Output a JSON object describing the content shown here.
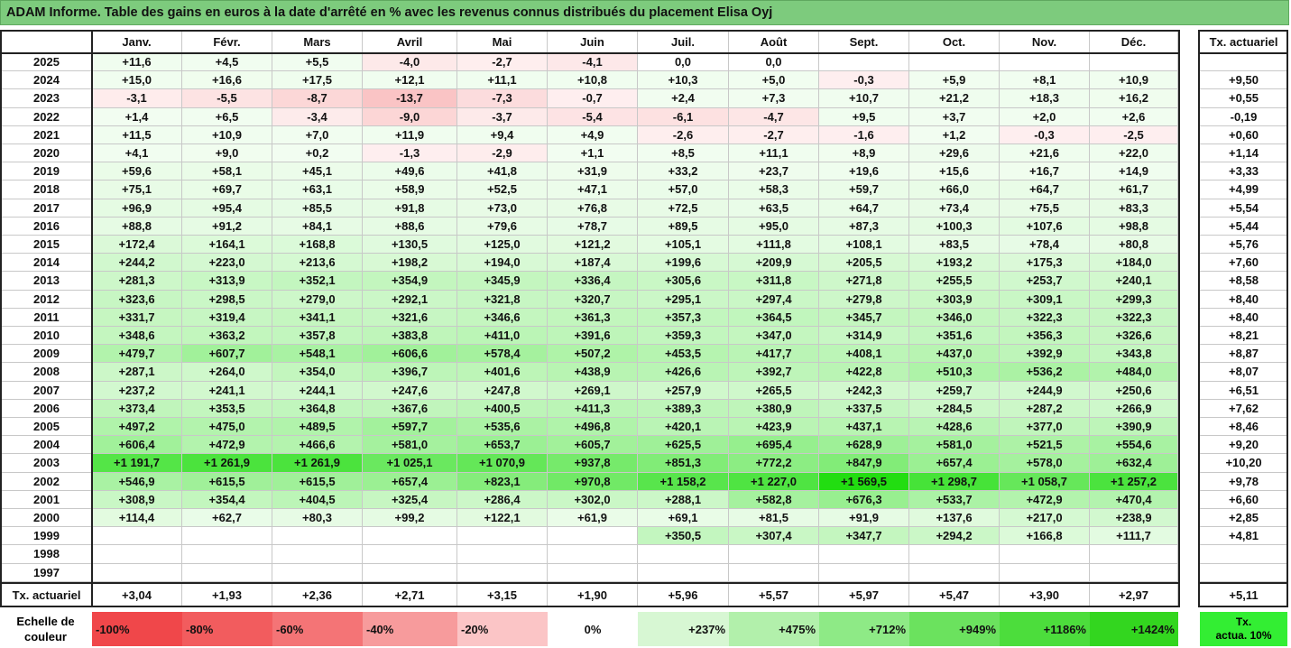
{
  "title": "ADAM Informe. Table des gains en euros à la date d'arrêté en % avec les revenus connus distribués du placement Elisa Oyj",
  "chart_data": {
    "type": "table",
    "columns": [
      "Janv.",
      "Févr.",
      "Mars",
      "Avril",
      "Mai",
      "Juin",
      "Juil.",
      "Août",
      "Sept.",
      "Oct.",
      "Nov.",
      "Déc."
    ],
    "rate_header": "Tx. actuariel",
    "rows": [
      {
        "year": "2025",
        "values": [
          "+11,6",
          "+4,5",
          "+5,5",
          "-4,0",
          "-2,7",
          "-4,1",
          "0,0",
          "0,0",
          "",
          "",
          "",
          ""
        ],
        "rate": ""
      },
      {
        "year": "2024",
        "values": [
          "+15,0",
          "+16,6",
          "+17,5",
          "+12,1",
          "+11,1",
          "+10,8",
          "+10,3",
          "+5,0",
          "-0,3",
          "+5,9",
          "+8,1",
          "+10,9"
        ],
        "rate": "+9,50"
      },
      {
        "year": "2023",
        "values": [
          "-3,1",
          "-5,5",
          "-8,7",
          "-13,7",
          "-7,3",
          "-0,7",
          "+2,4",
          "+7,3",
          "+10,7",
          "+21,2",
          "+18,3",
          "+16,2"
        ],
        "rate": "+0,55"
      },
      {
        "year": "2022",
        "values": [
          "+1,4",
          "+6,5",
          "-3,4",
          "-9,0",
          "-3,7",
          "-5,4",
          "-6,1",
          "-4,7",
          "+9,5",
          "+3,7",
          "+2,0",
          "+2,6"
        ],
        "rate": "-0,19"
      },
      {
        "year": "2021",
        "values": [
          "+11,5",
          "+10,9",
          "+7,0",
          "+11,9",
          "+9,4",
          "+4,9",
          "-2,6",
          "-2,7",
          "-1,6",
          "+1,2",
          "-0,3",
          "-2,5"
        ],
        "rate": "+0,60"
      },
      {
        "year": "2020",
        "values": [
          "+4,1",
          "+9,0",
          "+0,2",
          "-1,3",
          "-2,9",
          "+1,1",
          "+8,5",
          "+11,1",
          "+8,9",
          "+29,6",
          "+21,6",
          "+22,0"
        ],
        "rate": "+1,14"
      },
      {
        "year": "2019",
        "values": [
          "+59,6",
          "+58,1",
          "+45,1",
          "+49,6",
          "+41,8",
          "+31,9",
          "+33,2",
          "+23,7",
          "+19,6",
          "+15,6",
          "+16,7",
          "+14,9"
        ],
        "rate": "+3,33"
      },
      {
        "year": "2018",
        "values": [
          "+75,1",
          "+69,7",
          "+63,1",
          "+58,9",
          "+52,5",
          "+47,1",
          "+57,0",
          "+58,3",
          "+59,7",
          "+66,0",
          "+64,7",
          "+61,7"
        ],
        "rate": "+4,99"
      },
      {
        "year": "2017",
        "values": [
          "+96,9",
          "+95,4",
          "+85,5",
          "+91,8",
          "+73,0",
          "+76,8",
          "+72,5",
          "+63,5",
          "+64,7",
          "+73,4",
          "+75,5",
          "+83,3"
        ],
        "rate": "+5,54"
      },
      {
        "year": "2016",
        "values": [
          "+88,8",
          "+91,2",
          "+84,1",
          "+88,6",
          "+79,6",
          "+78,7",
          "+89,5",
          "+95,0",
          "+87,3",
          "+100,3",
          "+107,6",
          "+98,8"
        ],
        "rate": "+5,44"
      },
      {
        "year": "2015",
        "values": [
          "+172,4",
          "+164,1",
          "+168,8",
          "+130,5",
          "+125,0",
          "+121,2",
          "+105,1",
          "+111,8",
          "+108,1",
          "+83,5",
          "+78,4",
          "+80,8"
        ],
        "rate": "+5,76"
      },
      {
        "year": "2014",
        "values": [
          "+244,2",
          "+223,0",
          "+213,6",
          "+198,2",
          "+194,0",
          "+187,4",
          "+199,6",
          "+209,9",
          "+205,5",
          "+193,2",
          "+175,3",
          "+184,0"
        ],
        "rate": "+7,60"
      },
      {
        "year": "2013",
        "values": [
          "+281,3",
          "+313,9",
          "+352,1",
          "+354,9",
          "+345,9",
          "+336,4",
          "+305,6",
          "+311,8",
          "+271,8",
          "+255,5",
          "+253,7",
          "+240,1"
        ],
        "rate": "+8,58"
      },
      {
        "year": "2012",
        "values": [
          "+323,6",
          "+298,5",
          "+279,0",
          "+292,1",
          "+321,8",
          "+320,7",
          "+295,1",
          "+297,4",
          "+279,8",
          "+303,9",
          "+309,1",
          "+299,3"
        ],
        "rate": "+8,40"
      },
      {
        "year": "2011",
        "values": [
          "+331,7",
          "+319,4",
          "+341,1",
          "+321,6",
          "+346,6",
          "+361,3",
          "+357,3",
          "+364,5",
          "+345,7",
          "+346,0",
          "+322,3",
          "+322,3"
        ],
        "rate": "+8,40"
      },
      {
        "year": "2010",
        "values": [
          "+348,6",
          "+363,2",
          "+357,8",
          "+383,8",
          "+411,0",
          "+391,6",
          "+359,3",
          "+347,0",
          "+314,9",
          "+351,6",
          "+356,3",
          "+326,6"
        ],
        "rate": "+8,21"
      },
      {
        "year": "2009",
        "values": [
          "+479,7",
          "+607,7",
          "+548,1",
          "+606,6",
          "+578,4",
          "+507,2",
          "+453,5",
          "+417,7",
          "+408,1",
          "+437,0",
          "+392,9",
          "+343,8"
        ],
        "rate": "+8,87"
      },
      {
        "year": "2008",
        "values": [
          "+287,1",
          "+264,0",
          "+354,0",
          "+396,7",
          "+401,6",
          "+438,9",
          "+426,6",
          "+392,7",
          "+422,8",
          "+510,3",
          "+536,2",
          "+484,0"
        ],
        "rate": "+8,07"
      },
      {
        "year": "2007",
        "values": [
          "+237,2",
          "+241,1",
          "+244,1",
          "+247,6",
          "+247,8",
          "+269,1",
          "+257,9",
          "+265,5",
          "+242,3",
          "+259,7",
          "+244,9",
          "+250,6"
        ],
        "rate": "+6,51"
      },
      {
        "year": "2006",
        "values": [
          "+373,4",
          "+353,5",
          "+364,8",
          "+367,6",
          "+400,5",
          "+411,3",
          "+389,3",
          "+380,9",
          "+337,5",
          "+284,5",
          "+287,2",
          "+266,9"
        ],
        "rate": "+7,62"
      },
      {
        "year": "2005",
        "values": [
          "+497,2",
          "+475,0",
          "+489,5",
          "+597,7",
          "+535,6",
          "+496,8",
          "+420,1",
          "+423,9",
          "+437,1",
          "+428,6",
          "+377,0",
          "+390,9"
        ],
        "rate": "+8,46"
      },
      {
        "year": "2004",
        "values": [
          "+606,4",
          "+472,9",
          "+466,6",
          "+581,0",
          "+653,7",
          "+605,7",
          "+625,5",
          "+695,4",
          "+628,9",
          "+581,0",
          "+521,5",
          "+554,6"
        ],
        "rate": "+9,20"
      },
      {
        "year": "2003",
        "values": [
          "+1 191,7",
          "+1 261,9",
          "+1 261,9",
          "+1 025,1",
          "+1 070,9",
          "+937,8",
          "+851,3",
          "+772,2",
          "+847,9",
          "+657,4",
          "+578,0",
          "+632,4"
        ],
        "rate": "+10,20"
      },
      {
        "year": "2002",
        "values": [
          "+546,9",
          "+615,5",
          "+615,5",
          "+657,4",
          "+823,1",
          "+970,8",
          "+1 158,2",
          "+1 227,0",
          "+1 569,5",
          "+1 298,7",
          "+1 058,7",
          "+1 257,2"
        ],
        "rate": "+9,78"
      },
      {
        "year": "2001",
        "values": [
          "+308,9",
          "+354,4",
          "+404,5",
          "+325,4",
          "+286,4",
          "+302,0",
          "+288,1",
          "+582,8",
          "+676,3",
          "+533,7",
          "+472,9",
          "+470,4"
        ],
        "rate": "+6,60"
      },
      {
        "year": "2000",
        "values": [
          "+114,4",
          "+62,7",
          "+80,3",
          "+99,2",
          "+122,1",
          "+61,9",
          "+69,1",
          "+81,5",
          "+91,9",
          "+137,6",
          "+217,0",
          "+238,9"
        ],
        "rate": "+2,85"
      },
      {
        "year": "1999",
        "values": [
          "",
          "",
          "",
          "",
          "",
          "",
          "+350,5",
          "+307,4",
          "+347,7",
          "+294,2",
          "+166,8",
          "+111,7"
        ],
        "rate": "+4,81"
      },
      {
        "year": "1998",
        "values": [
          "",
          "",
          "",
          "",
          "",
          "",
          "",
          "",
          "",
          "",
          "",
          ""
        ],
        "rate": ""
      },
      {
        "year": "1997",
        "values": [
          "",
          "",
          "",
          "",
          "",
          "",
          "",
          "",
          "",
          "",
          "",
          ""
        ],
        "rate": ""
      }
    ],
    "summary": {
      "label": "Tx. actuariel",
      "values": [
        "+3,04",
        "+1,93",
        "+2,36",
        "+2,71",
        "+3,15",
        "+1,90",
        "+5,96",
        "+5,57",
        "+5,97",
        "+5,47",
        "+3,90",
        "+2,97"
      ],
      "overall": "+5,11"
    },
    "color_scale": {
      "label_line1": "Echelle de",
      "label_line2": "couleur",
      "stops": [
        {
          "label": "-100%",
          "value": -100,
          "color": "#f0474a"
        },
        {
          "label": "-80%",
          "value": -80,
          "color": "#f25c5e"
        },
        {
          "label": "-60%",
          "value": -60,
          "color": "#f47476"
        },
        {
          "label": "-40%",
          "value": -40,
          "color": "#f79b9c"
        },
        {
          "label": "-20%",
          "value": -20,
          "color": "#fbc5c6"
        },
        {
          "label": "0%",
          "value": 0,
          "color": "#ffffff"
        },
        {
          "label": "+237%",
          "value": 237,
          "color": "#d7f7d3"
        },
        {
          "label": "+475%",
          "value": 475,
          "color": "#b2f0ab"
        },
        {
          "label": "+712%",
          "value": 712,
          "color": "#8eea86"
        },
        {
          "label": "+949%",
          "value": 949,
          "color": "#6be25e"
        },
        {
          "label": "+1186%",
          "value": 1186,
          "color": "#4cdd3c"
        },
        {
          "label": "+1424%",
          "value": 1424,
          "color": "#33d61f"
        }
      ],
      "rate_legend_line1": "Tx.",
      "rate_legend_line2": "actua. 10%",
      "rate_legend_color": "#33ee33"
    }
  }
}
